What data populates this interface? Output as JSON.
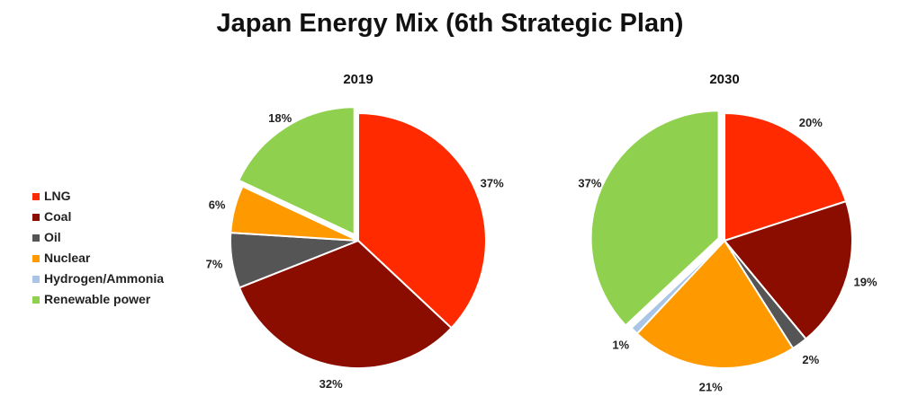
{
  "title": "Japan Energy Mix (6th Strategic Plan)",
  "legend": [
    {
      "label": "LNG",
      "color": "#ff2a00"
    },
    {
      "label": "Coal",
      "color": "#8b0d00"
    },
    {
      "label": "Oil",
      "color": "#555555"
    },
    {
      "label": "Nuclear",
      "color": "#ff9900"
    },
    {
      "label": "Hydrogen/Ammonia",
      "color": "#a9c4e4"
    },
    {
      "label": "Renewable power",
      "color": "#8fd14f"
    }
  ],
  "chart_data": [
    {
      "type": "pie",
      "title": "2019",
      "categories": [
        "LNG",
        "Coal",
        "Oil",
        "Nuclear",
        "Hydrogen/Ammonia",
        "Renewable power"
      ],
      "values": [
        37,
        32,
        7,
        6,
        0,
        18
      ],
      "labels": [
        "37%",
        "32%",
        "7%",
        "6%",
        "",
        "18%"
      ],
      "exploded": "Renewable power"
    },
    {
      "type": "pie",
      "title": "2030",
      "categories": [
        "LNG",
        "Coal",
        "Oil",
        "Nuclear",
        "Hydrogen/Ammonia",
        "Renewable power"
      ],
      "values": [
        20,
        19,
        2,
        21,
        1,
        37
      ],
      "labels": [
        "20%",
        "19%",
        "2%",
        "21%",
        "1%",
        "37%"
      ],
      "exploded": "Renewable power"
    }
  ]
}
